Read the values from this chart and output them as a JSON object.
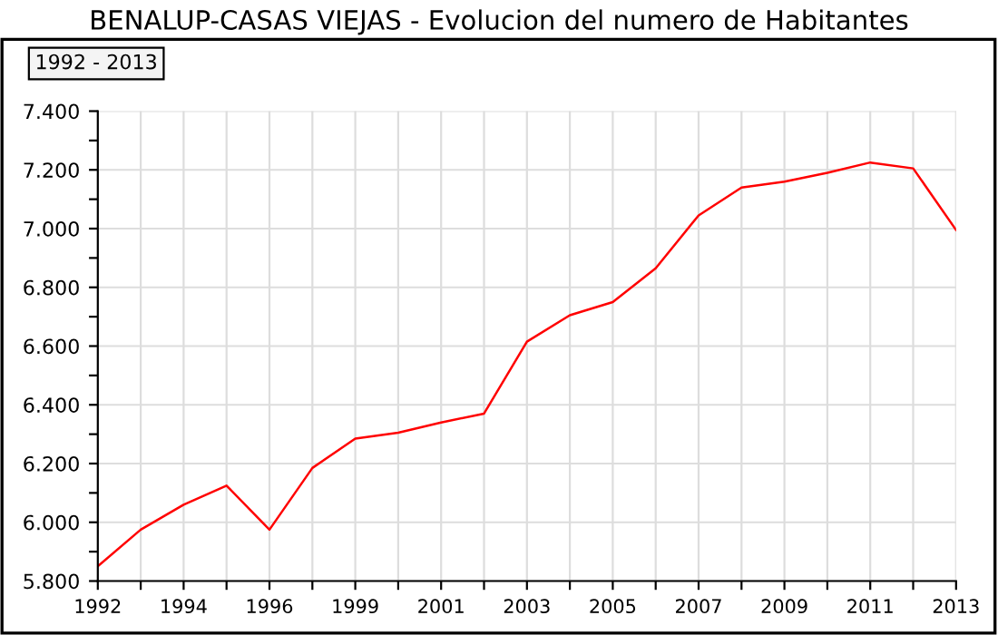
{
  "chart_data": {
    "type": "line",
    "title": "BENALUP-CASAS VIEJAS - Evolucion del numero de Habitantes",
    "subtitle": "1992 - 2013",
    "categories": [
      "1992",
      null,
      "1994",
      null,
      "1996",
      null,
      "1999",
      null,
      "2001",
      null,
      "2003",
      null,
      "2005",
      null,
      "2007",
      null,
      "2009",
      null,
      "2011",
      null,
      "2013"
    ],
    "series": [
      {
        "color": "#ff0000",
        "values": [
          5850,
          5975,
          6060,
          6125,
          5975,
          6185,
          6285,
          6305,
          6340,
          6370,
          6615,
          6705,
          6750,
          6865,
          7045,
          7140,
          7160,
          7190,
          7225,
          7205,
          6995
        ]
      }
    ],
    "ylim": [
      5800,
      7400
    ],
    "yticks": [
      {
        "value": 5800,
        "label": "5.800"
      },
      {
        "value": 5900,
        "label": null
      },
      {
        "value": 6000,
        "label": "6.000"
      },
      {
        "value": 6100,
        "label": null
      },
      {
        "value": 6200,
        "label": "6.200"
      },
      {
        "value": 6300,
        "label": null
      },
      {
        "value": 6400,
        "label": "6.400"
      },
      {
        "value": 6500,
        "label": null
      },
      {
        "value": 6600,
        "label": "6.600"
      },
      {
        "value": 6700,
        "label": null
      },
      {
        "value": 6800,
        "label": "6.800"
      },
      {
        "value": 6900,
        "label": null
      },
      {
        "value": 7000,
        "label": "7.000"
      },
      {
        "value": 7100,
        "label": null
      },
      {
        "value": 7200,
        "label": "7.200"
      },
      {
        "value": 7300,
        "label": null
      },
      {
        "value": 7400,
        "label": "7.400"
      }
    ],
    "grid": true,
    "marker": "none",
    "line_style": "solid"
  }
}
